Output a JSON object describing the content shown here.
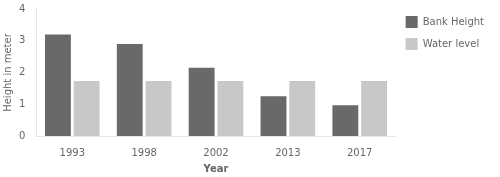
{
  "chart_data": {
    "type": "bar",
    "categories": [
      "1993",
      "1998",
      "2002",
      "2013",
      "2017"
    ],
    "series": [
      {
        "name": "Bank Height",
        "color": "#696969",
        "values": [
          3.2,
          2.9,
          2.15,
          1.25,
          0.97
        ]
      },
      {
        "name": "Water level",
        "color": "#c8c8c8",
        "values": [
          1.73,
          1.73,
          1.73,
          1.73,
          1.73
        ]
      }
    ],
    "xlabel": "Year",
    "ylabel": "Height in meter",
    "ylim": [
      0,
      4
    ],
    "yticks": [
      0,
      1,
      2,
      3,
      4
    ],
    "grid": false,
    "legend": "right"
  }
}
